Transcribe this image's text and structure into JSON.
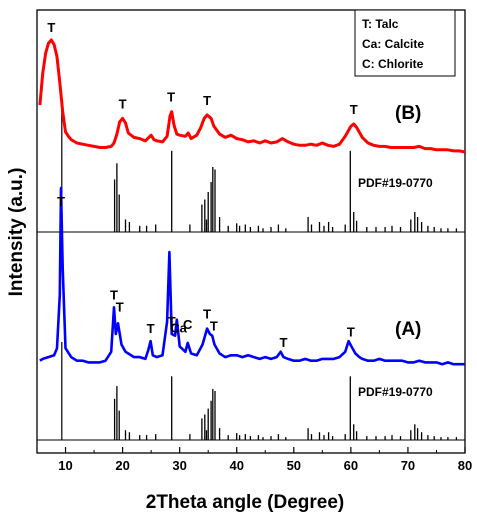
{
  "chart_data": {
    "type": "line",
    "xlabel": "2Theta angle (Degree)",
    "ylabel": "Intensity (a.u.)",
    "xlim": [
      5,
      80
    ],
    "xticks": [
      10,
      20,
      30,
      40,
      50,
      60,
      70,
      80
    ],
    "legend": {
      "position": "top-right",
      "entries": [
        "T: Talc",
        "Ca: Calcite",
        "C: Chlorite"
      ]
    },
    "series": [
      {
        "name": "(B)",
        "color": "#ff0000",
        "points": [
          [
            5.5,
            0.42
          ],
          [
            6,
            0.7
          ],
          [
            6.5,
            0.88
          ],
          [
            7,
            0.97
          ],
          [
            7.5,
            1.0
          ],
          [
            8,
            0.96
          ],
          [
            8.5,
            0.85
          ],
          [
            9,
            0.62
          ],
          [
            9.5,
            0.36
          ],
          [
            10,
            0.18
          ],
          [
            10.5,
            0.14
          ],
          [
            11,
            0.11
          ],
          [
            12,
            0.08
          ],
          [
            13,
            0.07
          ],
          [
            14,
            0.06
          ],
          [
            15,
            0.05
          ],
          [
            16,
            0.04
          ],
          [
            17,
            0.04
          ],
          [
            18,
            0.05
          ],
          [
            18.5,
            0.08
          ],
          [
            19,
            0.16
          ],
          [
            19.5,
            0.27
          ],
          [
            20,
            0.3
          ],
          [
            20.5,
            0.26
          ],
          [
            21,
            0.17
          ],
          [
            22,
            0.13
          ],
          [
            23,
            0.12
          ],
          [
            24,
            0.1
          ],
          [
            25,
            0.15
          ],
          [
            25.5,
            0.11
          ],
          [
            26,
            0.1
          ],
          [
            27,
            0.09
          ],
          [
            27.8,
            0.14
          ],
          [
            28.3,
            0.32
          ],
          [
            28.6,
            0.36
          ],
          [
            29,
            0.24
          ],
          [
            29.5,
            0.16
          ],
          [
            30,
            0.15
          ],
          [
            31,
            0.14
          ],
          [
            31.5,
            0.17
          ],
          [
            32,
            0.12
          ],
          [
            33,
            0.15
          ],
          [
            33.7,
            0.22
          ],
          [
            34.3,
            0.3
          ],
          [
            34.8,
            0.33
          ],
          [
            35.5,
            0.3
          ],
          [
            36,
            0.23
          ],
          [
            37,
            0.16
          ],
          [
            38,
            0.13
          ],
          [
            39,
            0.15
          ],
          [
            40,
            0.12
          ],
          [
            41,
            0.11
          ],
          [
            42,
            0.09
          ],
          [
            43,
            0.1
          ],
          [
            44,
            0.08
          ],
          [
            45,
            0.1
          ],
          [
            46,
            0.08
          ],
          [
            47,
            0.09
          ],
          [
            48,
            0.12
          ],
          [
            49,
            0.09
          ],
          [
            50,
            0.07
          ],
          [
            51,
            0.06
          ],
          [
            52,
            0.06
          ],
          [
            53,
            0.07
          ],
          [
            54,
            0.06
          ],
          [
            55,
            0.08
          ],
          [
            56,
            0.06
          ],
          [
            57,
            0.05
          ],
          [
            58,
            0.07
          ],
          [
            59,
            0.14
          ],
          [
            60,
            0.23
          ],
          [
            60.5,
            0.25
          ],
          [
            61,
            0.22
          ],
          [
            62,
            0.13
          ],
          [
            63,
            0.08
          ],
          [
            64,
            0.06
          ],
          [
            65,
            0.05
          ],
          [
            66,
            0.05
          ],
          [
            67,
            0.04
          ],
          [
            68,
            0.04
          ],
          [
            69,
            0.04
          ],
          [
            70,
            0.04
          ],
          [
            71,
            0.04
          ],
          [
            72,
            0.05
          ],
          [
            73,
            0.03
          ],
          [
            74,
            0.03
          ],
          [
            75,
            0.02
          ],
          [
            76,
            0.02
          ],
          [
            77,
            0.02
          ],
          [
            78,
            0.01
          ],
          [
            79,
            0.01
          ],
          [
            80,
            0.0
          ]
        ]
      },
      {
        "name": "(A)",
        "color": "#0000ff",
        "points": [
          [
            5.5,
            0.03
          ],
          [
            6,
            0.04
          ],
          [
            7,
            0.05
          ],
          [
            8,
            0.06
          ],
          [
            8.5,
            0.1
          ],
          [
            9,
            0.4
          ],
          [
            9.2,
            1.0
          ],
          [
            9.5,
            0.55
          ],
          [
            10,
            0.1
          ],
          [
            11,
            0.05
          ],
          [
            12,
            0.03
          ],
          [
            13,
            0.03
          ],
          [
            14,
            0.02
          ],
          [
            15,
            0.02
          ],
          [
            16,
            0.02
          ],
          [
            17,
            0.03
          ],
          [
            18,
            0.08
          ],
          [
            18.5,
            0.33
          ],
          [
            18.8,
            0.18
          ],
          [
            19.2,
            0.24
          ],
          [
            19.8,
            0.12
          ],
          [
            20.5,
            0.08
          ],
          [
            21,
            0.07
          ],
          [
            22,
            0.05
          ],
          [
            23,
            0.05
          ],
          [
            24,
            0.04
          ],
          [
            24.5,
            0.09
          ],
          [
            24.9,
            0.14
          ],
          [
            25.3,
            0.06
          ],
          [
            26,
            0.05
          ],
          [
            27,
            0.06
          ],
          [
            27.8,
            0.25
          ],
          [
            28.2,
            0.64
          ],
          [
            28.6,
            0.18
          ],
          [
            29.2,
            0.17
          ],
          [
            29.5,
            0.26
          ],
          [
            30,
            0.11
          ],
          [
            31,
            0.08
          ],
          [
            31.4,
            0.13
          ],
          [
            32,
            0.07
          ],
          [
            33,
            0.06
          ],
          [
            34,
            0.12
          ],
          [
            34.8,
            0.21
          ],
          [
            35.3,
            0.18
          ],
          [
            35.7,
            0.17
          ],
          [
            36.1,
            0.12
          ],
          [
            37,
            0.07
          ],
          [
            38,
            0.05
          ],
          [
            39,
            0.06
          ],
          [
            40,
            0.06
          ],
          [
            41,
            0.05
          ],
          [
            42,
            0.06
          ],
          [
            43,
            0.05
          ],
          [
            44,
            0.04
          ],
          [
            45,
            0.05
          ],
          [
            46,
            0.04
          ],
          [
            47,
            0.05
          ],
          [
            47.7,
            0.08
          ],
          [
            48.2,
            0.05
          ],
          [
            49,
            0.04
          ],
          [
            50,
            0.03
          ],
          [
            51,
            0.03
          ],
          [
            52,
            0.04
          ],
          [
            53,
            0.03
          ],
          [
            54,
            0.03
          ],
          [
            55,
            0.04
          ],
          [
            56,
            0.04
          ],
          [
            57,
            0.04
          ],
          [
            58,
            0.05
          ],
          [
            59,
            0.08
          ],
          [
            59.6,
            0.14
          ],
          [
            60.1,
            0.11
          ],
          [
            60.8,
            0.07
          ],
          [
            61.5,
            0.05
          ],
          [
            62,
            0.04
          ],
          [
            63,
            0.03
          ],
          [
            64,
            0.03
          ],
          [
            65,
            0.04
          ],
          [
            66,
            0.03
          ],
          [
            67,
            0.03
          ],
          [
            68,
            0.03
          ],
          [
            69,
            0.03
          ],
          [
            70,
            0.02
          ],
          [
            71,
            0.02
          ],
          [
            72,
            0.03
          ],
          [
            73,
            0.02
          ],
          [
            74,
            0.02
          ],
          [
            75,
            0.02
          ],
          [
            76,
            0.01
          ],
          [
            77,
            0.02
          ],
          [
            78,
            0.01
          ],
          [
            79,
            0.01
          ],
          [
            80,
            0.01
          ]
        ]
      }
    ],
    "reference_patterns": [
      {
        "label": "PDF#19-0770",
        "stick_positions": [
          9.35,
          18.6,
          19.0,
          19.4,
          20.5,
          21.2,
          23.0,
          24.2,
          25.8,
          28.6,
          31.8,
          33.9,
          34.4,
          34.7,
          35.0,
          35.5,
          35.8,
          36.2,
          37.0,
          38.5,
          40.0,
          40.5,
          41.5,
          42.4,
          43.8,
          44.6,
          46.0,
          47.3,
          48.6,
          52.5,
          53.1,
          54.5,
          55.3,
          56.1,
          56.8,
          59.0,
          59.9,
          60.5,
          61.0,
          62.8,
          64.4,
          66.0,
          67.2,
          68.7,
          70.5,
          71.2,
          71.7,
          72.4,
          73.5,
          74.6,
          75.8,
          77.0,
          78.5
        ],
        "stick_intensities": [
          1.0,
          0.42,
          0.55,
          0.3,
          0.1,
          0.08,
          0.05,
          0.05,
          0.06,
          0.65,
          0.06,
          0.22,
          0.26,
          0.1,
          0.32,
          0.4,
          0.52,
          0.5,
          0.12,
          0.05,
          0.07,
          0.05,
          0.06,
          0.04,
          0.05,
          0.03,
          0.04,
          0.06,
          0.03,
          0.12,
          0.06,
          0.08,
          0.05,
          0.08,
          0.04,
          0.06,
          0.65,
          0.16,
          0.09,
          0.04,
          0.04,
          0.04,
          0.05,
          0.04,
          0.1,
          0.16,
          0.12,
          0.08,
          0.05,
          0.04,
          0.03,
          0.03,
          0.03
        ]
      }
    ],
    "curve_labels": [
      "(B)",
      "(A)"
    ],
    "peak_labels_B": [
      {
        "text": "T",
        "x": 7.5
      },
      {
        "text": "T",
        "x": 20.0
      },
      {
        "text": "T",
        "x": 28.5
      },
      {
        "text": "T",
        "x": 34.8
      },
      {
        "text": "T",
        "x": 60.5
      }
    ],
    "peak_labels_A": [
      {
        "text": "T",
        "x": 9.2
      },
      {
        "text": "T",
        "x": 18.5
      },
      {
        "text": "T",
        "x": 19.5
      },
      {
        "text": "T",
        "x": 24.9
      },
      {
        "text": "T",
        "x": 28.6
      },
      {
        "text": "Ca",
        "x": 29.8
      },
      {
        "text": "C",
        "x": 31.4
      },
      {
        "text": "T",
        "x": 34.8
      },
      {
        "text": "T",
        "x": 36.0
      },
      {
        "text": "T",
        "x": 48.2
      },
      {
        "text": "T",
        "x": 60.0
      }
    ]
  }
}
